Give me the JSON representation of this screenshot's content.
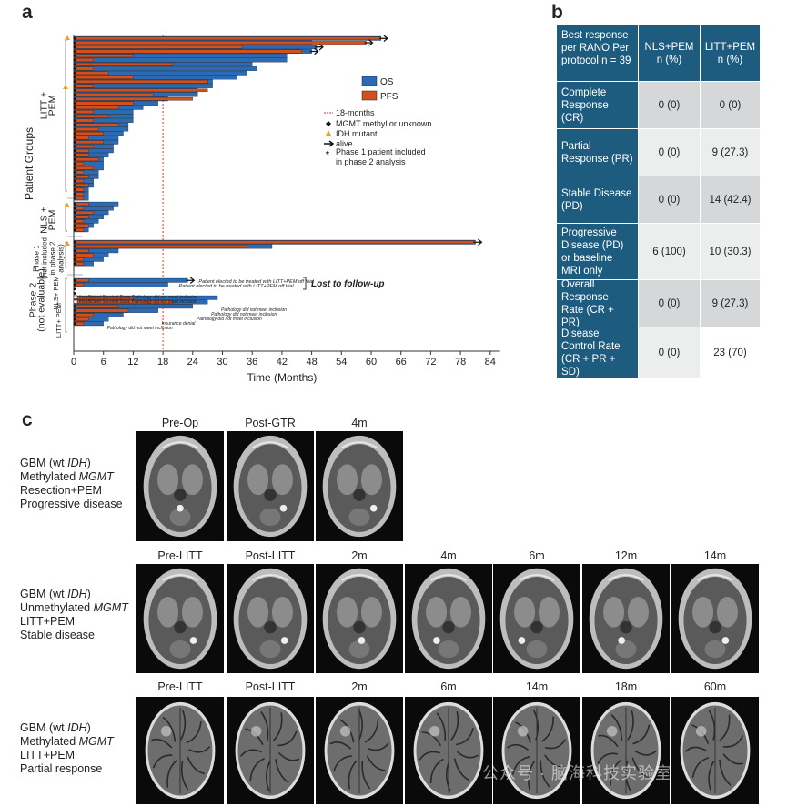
{
  "panels": {
    "a": "a",
    "b": "b",
    "c": "c"
  },
  "chart_data": {
    "type": "bar",
    "orientation": "horizontal",
    "title": "",
    "xlabel": "Time (Months)",
    "ylabel": "Patient Groups",
    "xlim": [
      0,
      86
    ],
    "xticks": [
      0,
      6,
      12,
      18,
      24,
      30,
      36,
      42,
      48,
      54,
      60,
      66,
      72,
      78,
      84
    ],
    "reference_line": {
      "x": 18,
      "label": "18-months"
    },
    "legend": {
      "os": "OS",
      "pfs": "PFS",
      "reference": "18-months",
      "mgmt": "MGMT methyl or unknown",
      "idh": "IDH mutant",
      "alive": "alive",
      "phase1_line1": "Phase 1 patient included",
      "phase1_line2": "in phase 2 analysis"
    },
    "colors": {
      "os": "#2b6ab5",
      "pfs": "#d3501d",
      "reference": "#e0302a",
      "idh": "#f0a020"
    },
    "groups": [
      {
        "label_lines": [
          "LITT +",
          "PEM"
        ],
        "os": [
          62,
          48,
          49,
          48,
          43,
          43,
          36,
          37,
          35,
          33,
          28,
          28,
          25,
          25,
          19,
          17,
          14,
          12,
          12,
          12,
          11,
          11,
          10,
          9,
          9,
          8,
          8,
          7,
          6,
          6,
          6,
          5,
          5,
          4,
          4,
          3,
          3,
          3
        ],
        "pfs": [
          62,
          59,
          34,
          46,
          12,
          4,
          20,
          4,
          7,
          12,
          27,
          4,
          27,
          16,
          24,
          12,
          9,
          4,
          7,
          4,
          9,
          5,
          6,
          3,
          6,
          4,
          3,
          3,
          5,
          2,
          4,
          2,
          3,
          2,
          3,
          2,
          2,
          2
        ],
        "alive": [
          0,
          1,
          2,
          3
        ]
      },
      {
        "label_lines": [
          "NLS +",
          "PEM"
        ],
        "os": [
          9,
          8,
          7,
          6,
          5,
          4,
          3
        ],
        "pfs": [
          3,
          2,
          4,
          3,
          2,
          3,
          2
        ],
        "alive": []
      },
      {
        "label_lines": [
          "Phase 1",
          "(not included",
          "in phase 2",
          "analysis)"
        ],
        "os": [
          81,
          40,
          9,
          7,
          6,
          4
        ],
        "pfs": [
          81,
          35,
          3,
          4,
          2,
          2
        ],
        "alive": [
          0
        ]
      },
      {
        "label_lines": [
          "Phase 2",
          "(not evaluable)"
        ],
        "sublabels": [
          "NLS+ PEM",
          "LITT+ PEM"
        ],
        "os": [
          23,
          19,
          0,
          0,
          29,
          27,
          24,
          17,
          10,
          7,
          6
        ],
        "pfs": [
          3,
          2,
          0,
          0,
          12,
          20,
          9,
          11,
          4,
          3,
          2
        ],
        "alive": [
          0
        ]
      }
    ],
    "annotations": {
      "elected1": "Patient elected to be treated with LITT+PEM off trial",
      "elected2": "Patient elected to be treated with LITT+PEM off trial",
      "lost": "Lost to follow-up",
      "insufficient1": "Insufficient Survival Data; Pathology did not meet inclusion",
      "insufficient2": "Insufficient Survival Data; Pathology did not meet inclusion",
      "path1": "Pathology did not meet inclusion",
      "path2": "Pathology did not meet inclusion",
      "path3": "Pathology did not meet inclusion",
      "insurance": "Insurance denial",
      "path4": "Pathology did not meet inclusion"
    }
  },
  "table": {
    "header": {
      "label": "Best response per RANO Per protocol n = 39",
      "col1": "NLS+PEM n (%)",
      "col2": "LITT+PEM n (%)"
    },
    "rows": [
      {
        "label": "Complete Response (CR)",
        "nls": "0 (0)",
        "litt": "0 (0)"
      },
      {
        "label": "Partial Response (PR)",
        "nls": "0 (0)",
        "litt": "9 (27.3)"
      },
      {
        "label": "Stable Disease (PD)",
        "nls": "0 (0)",
        "litt": "14 (42.4)"
      },
      {
        "label": "Progressive Disease (PD) or baseline MRI only",
        "nls": "6 (100)",
        "litt": "10 (30.3)"
      },
      {
        "label": "Overall Response Rate (CR + PR)",
        "nls": "0 (0)",
        "litt": "9 (27.3)"
      },
      {
        "label": "Disease Control Rate (CR + PR + SD)",
        "nls": "0 (0)",
        "litt": "23 (70)"
      }
    ]
  },
  "cases": [
    {
      "line1a": "GBM (wt ",
      "line1b": "IDH",
      "line1c": ")",
      "line2a": "Methylated ",
      "line2b": "MGMT",
      "line3": "Resection+PEM",
      "line4": "Progressive disease",
      "timepoints": [
        "Pre-Op",
        "Post-GTR",
        "4m"
      ]
    },
    {
      "line1a": "GBM (wt ",
      "line1b": "IDH",
      "line1c": ")",
      "line2a": "Unmethylated ",
      "line2b": "MGMT",
      "line3": "LITT+PEM",
      "line4": "Stable disease",
      "timepoints": [
        "Pre-LITT",
        "Post-LITT",
        "2m",
        "4m",
        "6m",
        "12m",
        "14m"
      ]
    },
    {
      "line1a": "GBM (wt ",
      "line1b": "IDH",
      "line1c": ")",
      "line2a": "Methylated ",
      "line2b": "MGMT",
      "line3": "LITT+PEM",
      "line4": "Partial response",
      "timepoints": [
        "Pre-LITT",
        "Post-LITT",
        "2m",
        "6m",
        "14m",
        "18m",
        "60m"
      ]
    }
  ],
  "watermark": "公众号 · 脑海科技实验室"
}
